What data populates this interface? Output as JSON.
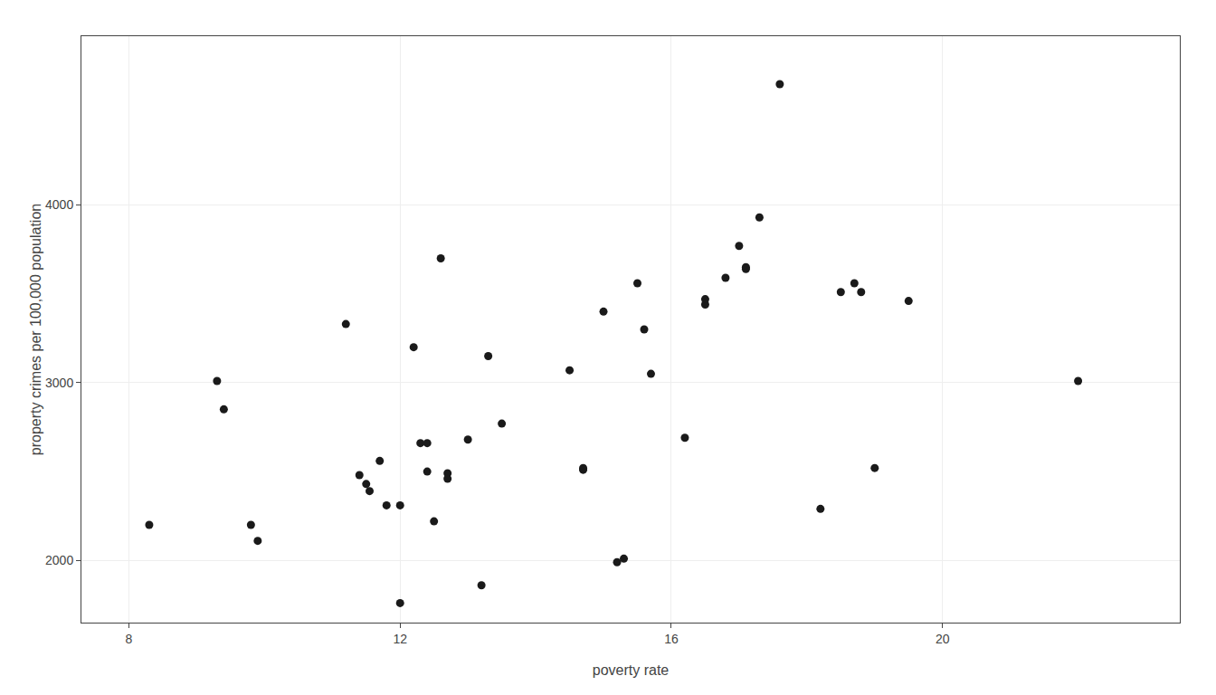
{
  "chart_data": {
    "type": "scatter",
    "xlabel": "poverty rate",
    "ylabel": "property crimes per 100,000 population",
    "x": [
      8.3,
      9.3,
      9.4,
      9.8,
      9.9,
      11.2,
      11.4,
      11.5,
      11.55,
      11.7,
      11.8,
      12.0,
      12.0,
      12.2,
      12.3,
      12.4,
      12.4,
      12.5,
      12.6,
      12.7,
      12.7,
      13.0,
      13.2,
      13.3,
      13.5,
      14.5,
      14.7,
      14.7,
      15.0,
      15.2,
      15.3,
      15.5,
      15.6,
      15.7,
      16.2,
      16.5,
      16.5,
      16.8,
      17.0,
      17.1,
      17.1,
      17.3,
      17.6,
      18.2,
      18.5,
      18.7,
      18.8,
      19.0,
      19.5,
      22.0
    ],
    "values": [
      2200,
      3010,
      2850,
      2200,
      2110,
      3330,
      2480,
      2430,
      2390,
      2560,
      2310,
      1760,
      2310,
      3200,
      2660,
      2660,
      2500,
      2220,
      3700,
      2490,
      2460,
      2680,
      1860,
      3150,
      2770,
      3070,
      2510,
      2520,
      3400,
      1990,
      2010,
      3560,
      3300,
      3050,
      2690,
      3440,
      3470,
      3590,
      3770,
      3640,
      3650,
      3930,
      4680,
      2290,
      3510,
      3560,
      3510,
      2520,
      3460,
      3010
    ],
    "color": "#1a1a1a",
    "xlim": [
      7.3,
      23.5
    ],
    "ylim": [
      1650,
      4950
    ],
    "xticks": [
      8,
      12,
      16,
      20
    ],
    "yticks": [
      2000,
      3000,
      4000
    ],
    "grid": true
  }
}
